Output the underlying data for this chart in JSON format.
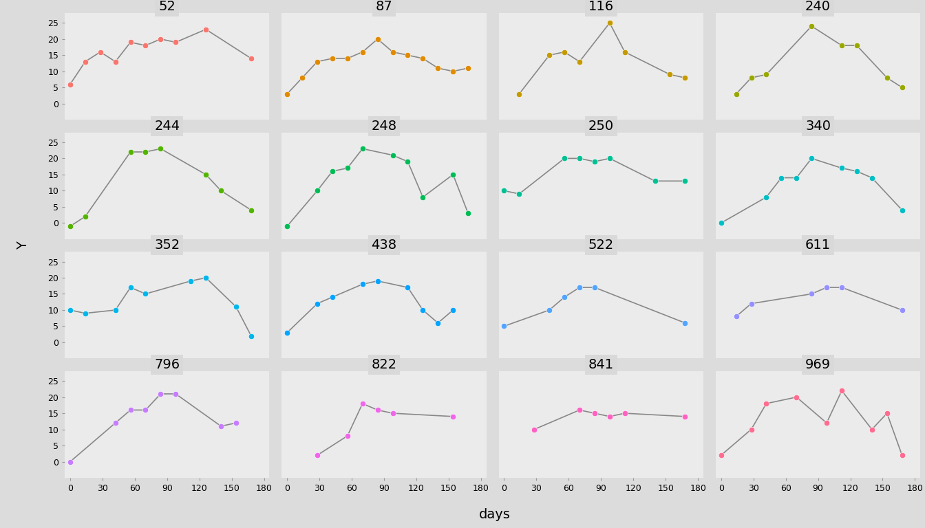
{
  "panels": [
    {
      "id": "52",
      "x": [
        0,
        14,
        28,
        42,
        56,
        70,
        84,
        98,
        126,
        168
      ],
      "y": [
        6,
        13,
        16,
        13,
        19,
        18,
        20,
        19,
        23,
        14
      ],
      "color": "#F8766D"
    },
    {
      "id": "87",
      "x": [
        0,
        14,
        28,
        42,
        56,
        70,
        84,
        98,
        112,
        126,
        140,
        154,
        168
      ],
      "y": [
        3,
        8,
        13,
        14,
        14,
        16,
        20,
        16,
        15,
        14,
        11,
        10,
        11
      ],
      "color": "#E08B00"
    },
    {
      "id": "116",
      "x": [
        14,
        42,
        56,
        70,
        98,
        112,
        154,
        168
      ],
      "y": [
        3,
        15,
        16,
        13,
        25,
        16,
        9,
        8
      ],
      "color": "#C49A00"
    },
    {
      "id": "240",
      "x": [
        14,
        28,
        42,
        84,
        112,
        126,
        154,
        168
      ],
      "y": [
        3,
        8,
        9,
        24,
        18,
        18,
        8,
        5
      ],
      "color": "#99A800"
    },
    {
      "id": "244",
      "x": [
        0,
        14,
        56,
        70,
        84,
        126,
        140,
        168
      ],
      "y": [
        -1,
        2,
        22,
        22,
        23,
        15,
        10,
        4
      ],
      "color": "#53B400"
    },
    {
      "id": "248",
      "x": [
        0,
        28,
        42,
        56,
        70,
        98,
        112,
        126,
        154,
        168
      ],
      "y": [
        -1,
        10,
        16,
        17,
        23,
        21,
        19,
        8,
        15,
        3
      ],
      "color": "#00BC56"
    },
    {
      "id": "250",
      "x": [
        0,
        14,
        56,
        70,
        84,
        98,
        140,
        168
      ],
      "y": [
        10,
        9,
        20,
        20,
        19,
        20,
        13,
        13
      ],
      "color": "#00C094"
    },
    {
      "id": "340",
      "x": [
        0,
        42,
        56,
        70,
        84,
        112,
        126,
        140,
        168
      ],
      "y": [
        0,
        8,
        14,
        14,
        20,
        17,
        16,
        14,
        4
      ],
      "color": "#00BFC4"
    },
    {
      "id": "352",
      "x": [
        0,
        14,
        42,
        56,
        70,
        112,
        126,
        154,
        168
      ],
      "y": [
        10,
        9,
        10,
        17,
        15,
        19,
        20,
        11,
        2
      ],
      "color": "#00B6EB"
    },
    {
      "id": "438",
      "x": [
        0,
        28,
        42,
        70,
        84,
        112,
        126,
        140,
        154
      ],
      "y": [
        3,
        12,
        14,
        18,
        19,
        17,
        10,
        6,
        10
      ],
      "color": "#06A4FF"
    },
    {
      "id": "522",
      "x": [
        0,
        42,
        56,
        70,
        84,
        168
      ],
      "y": [
        5,
        10,
        14,
        17,
        17,
        6
      ],
      "color": "#53A4FF"
    },
    {
      "id": "611",
      "x": [
        14,
        28,
        84,
        98,
        112,
        168
      ],
      "y": [
        8,
        12,
        15,
        17,
        17,
        10
      ],
      "color": "#9590FF"
    },
    {
      "id": "796",
      "x": [
        0,
        42,
        56,
        70,
        84,
        98,
        140,
        154
      ],
      "y": [
        0,
        12,
        16,
        16,
        21,
        21,
        11,
        12
      ],
      "color": "#C77CFF"
    },
    {
      "id": "822",
      "x": [
        28,
        56,
        70,
        84,
        98,
        154
      ],
      "y": [
        2,
        8,
        18,
        16,
        15,
        14
      ],
      "color": "#F066EA"
    },
    {
      "id": "841",
      "x": [
        28,
        70,
        84,
        98,
        112,
        168
      ],
      "y": [
        10,
        16,
        15,
        14,
        15,
        14
      ],
      "color": "#FF61C3"
    },
    {
      "id": "969",
      "x": [
        0,
        28,
        42,
        70,
        98,
        112,
        140,
        154,
        168
      ],
      "y": [
        2,
        10,
        18,
        20,
        12,
        22,
        10,
        15,
        2
      ],
      "color": "#FF6C90"
    }
  ],
  "ncols": 4,
  "nrows": 4,
  "xlabel": "days",
  "ylabel": "Y",
  "xlim": [
    -5,
    185
  ],
  "ylim": [
    -5,
    28
  ],
  "yticks": [
    0,
    5,
    10,
    15,
    20,
    25
  ],
  "xticks": [
    0,
    30,
    60,
    90,
    120,
    150,
    180
  ],
  "bg_panel": "#EBEBEB",
  "bg_strip": "#D9D9D9",
  "bg_outer": "#DCDCDC",
  "line_color": "#888888",
  "line_width": 1.2,
  "marker_size": 6,
  "title_fontsize": 14,
  "label_fontsize": 14,
  "tick_fontsize": 9
}
